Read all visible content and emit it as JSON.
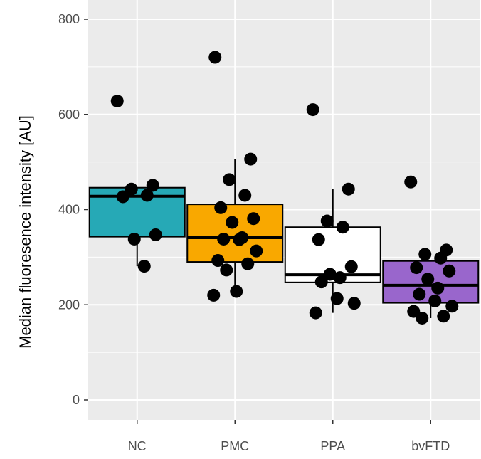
{
  "chart_data": {
    "type": "box",
    "title": "",
    "xlabel": "",
    "ylabel": "Median fluoresence intensity [AU]",
    "ylim": [
      -50,
      820
    ],
    "yticks": [
      0,
      200,
      400,
      600,
      800
    ],
    "categories": [
      "NC",
      "PMC",
      "PPA",
      "bvFTD"
    ],
    "grid": true,
    "legend": "none",
    "colors": {
      "panel_background": "#ebebeb",
      "grid": "#ffffff",
      "box_outline": "#000000",
      "points": "#000000",
      "NC": "#26a9b6",
      "PMC": "#f9a800",
      "PPA": "#ffffff",
      "bvFTD": "#9966cc"
    },
    "boxes": [
      {
        "category": "NC",
        "q1": 343,
        "median": 428,
        "q3": 446,
        "whisker_low": 281,
        "whisker_high": 446
      },
      {
        "category": "PMC",
        "q1": 290,
        "median": 341,
        "q3": 411,
        "whisker_low": 220,
        "whisker_high": 506
      },
      {
        "category": "PPA",
        "q1": 247,
        "median": 263,
        "q3": 363,
        "whisker_low": 183,
        "whisker_high": 443
      },
      {
        "category": "bvFTD",
        "q1": 204,
        "median": 241,
        "q3": 292,
        "whisker_low": 172,
        "whisker_high": 292
      }
    ],
    "points": [
      {
        "category": "NC",
        "values": [
          628,
          451,
          443,
          430,
          427,
          347,
          338,
          281
        ]
      },
      {
        "category": "PMC",
        "values": [
          720,
          506,
          463,
          430,
          404,
          381,
          373,
          341,
          338,
          337,
          313,
          293,
          286,
          273,
          228,
          220
        ]
      },
      {
        "category": "PPA",
        "values": [
          610,
          443,
          376,
          363,
          337,
          280,
          264,
          257,
          248,
          213,
          203,
          183
        ]
      },
      {
        "category": "bvFTD",
        "values": [
          458,
          315,
          306,
          298,
          278,
          271,
          254,
          235,
          222,
          208,
          197,
          186,
          176,
          172
        ]
      }
    ]
  }
}
